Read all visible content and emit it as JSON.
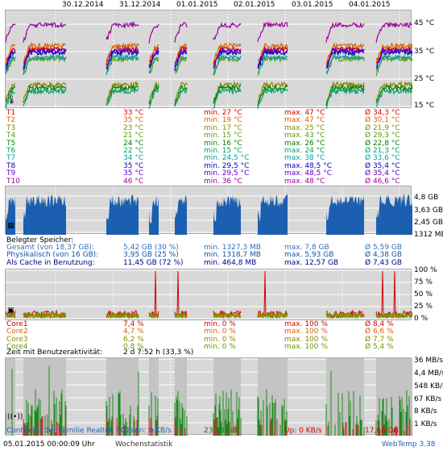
{
  "dates": [
    "30.12.2014",
    "31.12.2014",
    "01.01.2015",
    "02.01.2015",
    "03.01.2015",
    "04.01.2015"
  ],
  "temp_axis": [
    "45 °C",
    "35 °C",
    "25 °C",
    "15 °C"
  ],
  "temps": [
    {
      "name": "T1",
      "current": "33 °C",
      "min": "min. 27 °C",
      "max": "max. 47 °C",
      "avg": "Ø 34,3 °C",
      "color": "#d40000"
    },
    {
      "name": "T2",
      "current": "35 °C",
      "min": "min. 19 °C",
      "max": "max. 47 °C",
      "avg": "Ø 30,1 °C",
      "color": "#e06000"
    },
    {
      "name": "T3",
      "current": "23 °C",
      "min": "min. 17 °C",
      "max": "max. 25 °C",
      "avg": "Ø 21,9 °C",
      "color": "#8a8a00"
    },
    {
      "name": "T4",
      "current": "21 °C",
      "min": "min. 15 °C",
      "max": "max. 43 °C",
      "avg": "Ø 29,3 °C",
      "color": "#5aa000"
    },
    {
      "name": "T5",
      "current": "24 °C",
      "min": "min. 16 °C",
      "max": "max. 26 °C",
      "avg": "Ø 22,8 °C",
      "color": "#008000"
    },
    {
      "name": "T6",
      "current": "22 °C",
      "min": "min. 15 °C",
      "max": "max. 24 °C",
      "avg": "Ø 21,3 °C",
      "color": "#00a070"
    },
    {
      "name": "T7",
      "current": "34 °C",
      "min": "min. 24,5 °C",
      "max": "max. 38 °C",
      "avg": "Ø 33,6 °C",
      "color": "#00a0a0"
    },
    {
      "name": "T8",
      "current": "35 °C",
      "min": "min. 29,5 °C",
      "max": "max. 48,5 °C",
      "avg": "Ø 35,4 °C",
      "color": "#0000c0"
    },
    {
      "name": "T9",
      "current": "35 °C",
      "min": "min. 29,5 °C",
      "max": "max. 48,5 °C",
      "avg": "Ø 35,4 °C",
      "color": "#6000c0"
    },
    {
      "name": "T10",
      "current": "46 °C",
      "min": "min. 36 °C",
      "max": "max. 48 °C",
      "avg": "Ø 46,6 °C",
      "color": "#a000a0"
    }
  ],
  "mem_axis": [
    "4,8 GB",
    "3,63 GB",
    "2,45 GB",
    "1312 MB"
  ],
  "mem_title": "Belegter Speicher:",
  "mem": [
    {
      "name": "Gesamt (von 18,37 GB):",
      "current": "5,42 GB (30 %)",
      "min": "min. 1327,3 MB",
      "max": "max. 7,8 GB",
      "avg": "Ø 5,59 GB",
      "color": "#3070c0"
    },
    {
      "name": "Physikalisch (von 16 GB):",
      "current": "3,95 GB (25 %)",
      "min": "min. 1318,7 MB",
      "max": "max. 5,93 GB",
      "avg": "Ø 4,38 GB",
      "color": "#1050b0"
    },
    {
      "name": "Als Cache in Benutzung:",
      "current": "11,45 GB (72 %)",
      "min": "min. 464,8 MB",
      "max": "max. 12,57 GB",
      "avg": "Ø 7,43 GB",
      "color": "#000080"
    }
  ],
  "cpu_axis": [
    "100 %",
    "75 %",
    "50 %",
    "25 %",
    "0 %"
  ],
  "cpu": [
    {
      "name": "Core1",
      "current": "7,4 %",
      "min": "min. 0 %",
      "max": "max. 100 %",
      "avg": "Ø 8,4 %",
      "color": "#d40000"
    },
    {
      "name": "Core2",
      "current": "4,7 %",
      "min": "min. 0 %",
      "max": "max. 100 %",
      "avg": "Ø 6,6 %",
      "color": "#e06000"
    },
    {
      "name": "Core3",
      "current": "6,2 %",
      "min": "min. 0 %",
      "max": "max. 100 %",
      "avg": "Ø 7,7 %",
      "color": "#8a8a00"
    },
    {
      "name": "Core4",
      "current": "0,8 %",
      "min": "min. 0 %",
      "max": "max. 100 %",
      "avg": "Ø 5,4 %",
      "color": "#5aa000"
    }
  ],
  "activity_label": "Zeit mit Benutzeraktivität:",
  "activity_value": "2 d 7:52 h (33,3 %)",
  "net_axis": [
    "36 MB/s",
    "4,4 MB/s",
    "548 KB/s",
    "67 KB/s",
    "8 KB/s",
    "1 KB/s"
  ],
  "net": {
    "controller": "Controller der Familie Realtek PC",
    "down": "Down: 0 KB/s",
    "down_total": "23,48 GB",
    "up": "Up: 0 KB/s",
    "up_total": "17,68 GB"
  },
  "footer": {
    "timestamp": "05.01.2015 00:00:09 Uhr",
    "stats_link": "Wochenstatistik",
    "brand": "WebTemp 3.38"
  }
}
